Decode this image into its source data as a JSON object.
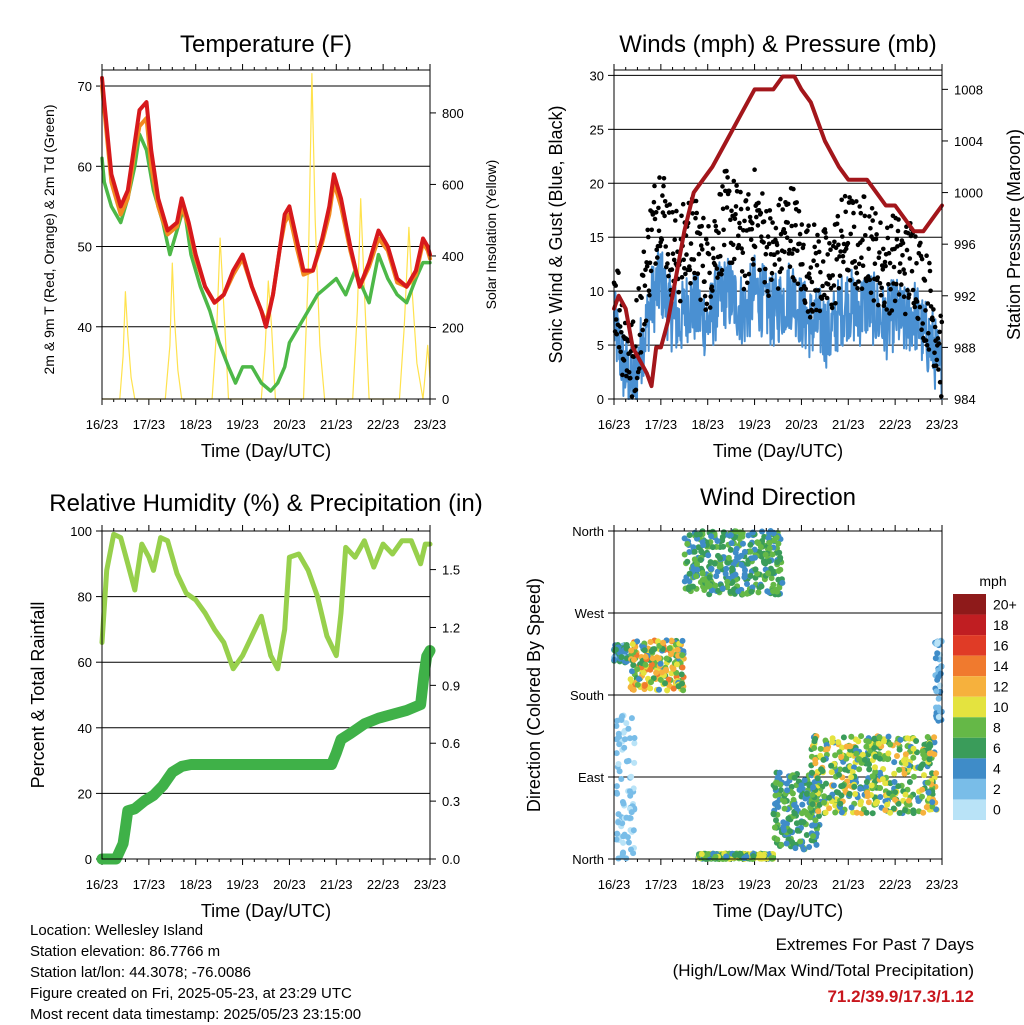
{
  "palette": {
    "t_red": "#d7191c",
    "t_orange": "#f28a20",
    "td_green": "#4db848",
    "solar_yellow": "#ffe24d",
    "wind_blue": "#4a90d2",
    "gust_black": "#000000",
    "pressure_maroon": "#a3161b",
    "rh_green": "#97d04c",
    "precip_green": "#3fb148",
    "extreme_red": "#c8161d"
  },
  "chart_data": [
    {
      "type": "line",
      "title": "Temperature (F)",
      "xlabel": "Time (Day/UTC)",
      "ylabel_left": "2m & 9m T (Red, Orange) & 2m Td (Green)",
      "ylabel_right": "Solar Insolation (Yellow)",
      "x_ticks": [
        "16/23",
        "17/23",
        "18/23",
        "19/23",
        "20/23",
        "21/23",
        "22/23",
        "23/23"
      ],
      "xlim": [
        0,
        7
      ],
      "y_ticks_left": [
        40,
        50,
        60,
        70
      ],
      "ylim_left": [
        31,
        72
      ],
      "y_ticks_right": [
        0,
        200,
        400,
        600,
        800
      ],
      "ylim_right": [
        0,
        920
      ],
      "grid_y": [
        40,
        50,
        60,
        70
      ],
      "series": [
        {
          "axis": "left",
          "x": [
            0,
            0.05,
            0.2,
            0.4,
            0.55,
            0.7,
            0.8,
            0.95,
            1.05,
            1.2,
            1.4,
            1.6,
            1.7,
            1.85,
            2,
            2.2,
            2.4,
            2.6,
            2.8,
            3,
            3.2,
            3.4,
            3.5,
            3.65,
            3.8,
            3.9,
            4,
            4.15,
            4.3,
            4.5,
            4.7,
            4.85,
            4.95,
            5.1,
            5.3,
            5.5,
            5.7,
            5.9,
            6.1,
            6.3,
            6.5,
            6.7,
            6.85,
            6.95,
            7
          ],
          "y": [
            71,
            68,
            59,
            55,
            57,
            63,
            67,
            68,
            62,
            56,
            52,
            53,
            56,
            53,
            49,
            45,
            43,
            44,
            47,
            49,
            45,
            42,
            40,
            44,
            50,
            54,
            55,
            51,
            47,
            47,
            51,
            55,
            59,
            56,
            50,
            45,
            48,
            52,
            50,
            46,
            45,
            47,
            51,
            50,
            49
          ]
        },
        {
          "axis": "left",
          "x": [
            0,
            0.05,
            0.2,
            0.4,
            0.55,
            0.7,
            0.8,
            0.95,
            1.05,
            1.2,
            1.4,
            1.6,
            1.7,
            1.85,
            2,
            2.2,
            2.4,
            2.6,
            2.8,
            3,
            3.2,
            3.4,
            3.5,
            3.65,
            3.8,
            3.9,
            4,
            4.15,
            4.3,
            4.5,
            4.7,
            4.85,
            4.95,
            5.1,
            5.3,
            5.5,
            5.7,
            5.9,
            6.1,
            6.3,
            6.5,
            6.7,
            6.85,
            6.95,
            7
          ],
          "y": [
            70,
            67,
            58,
            54,
            56,
            62,
            65,
            66,
            60,
            55,
            51.5,
            52.5,
            55,
            52.5,
            48.5,
            45,
            43,
            44,
            46.5,
            48.5,
            45,
            42,
            40.5,
            44,
            50,
            53,
            54,
            50,
            46.5,
            47,
            50.5,
            54,
            58,
            55,
            49.5,
            45,
            47.5,
            51,
            49.5,
            45.5,
            45,
            46.5,
            50.5,
            49.5,
            48.5
          ]
        },
        {
          "axis": "left",
          "x": [
            0,
            0.05,
            0.2,
            0.4,
            0.55,
            0.7,
            0.8,
            0.95,
            1.1,
            1.3,
            1.45,
            1.6,
            1.75,
            1.9,
            2.1,
            2.3,
            2.5,
            2.7,
            2.85,
            3,
            3.2,
            3.4,
            3.6,
            3.75,
            3.9,
            4,
            4.2,
            4.4,
            4.6,
            4.8,
            5,
            5.2,
            5.4,
            5.55,
            5.7,
            5.9,
            6.1,
            6.3,
            6.5,
            6.7,
            6.85,
            7
          ],
          "y": [
            61,
            58,
            55,
            53,
            56,
            60,
            64,
            62,
            57,
            53,
            49,
            52,
            55,
            49,
            45,
            42,
            38,
            35,
            33,
            35,
            35,
            33,
            32,
            33,
            35,
            38,
            40,
            42,
            44,
            45,
            46,
            44,
            47,
            45,
            43,
            49,
            46,
            44,
            43,
            46,
            48,
            48
          ]
        },
        {
          "axis": "right",
          "x": [
            0,
            0.38,
            0.45,
            0.5,
            0.55,
            0.62,
            0.7,
            1.35,
            1.45,
            1.5,
            1.55,
            1.62,
            1.7,
            2.35,
            2.45,
            2.52,
            2.6,
            2.7,
            3.4,
            3.48,
            3.55,
            3.62,
            3.7,
            4.3,
            4.4,
            4.48,
            4.55,
            4.65,
            4.75,
            5.35,
            5.45,
            5.52,
            5.6,
            5.7,
            6.35,
            6.45,
            6.55,
            6.62,
            6.72,
            6.85,
            6.95,
            7
          ],
          "y": [
            0,
            0,
            120,
            300,
            180,
            60,
            0,
            0,
            150,
            380,
            220,
            80,
            0,
            0,
            200,
            450,
            260,
            0,
            0,
            140,
            330,
            200,
            0,
            0,
            350,
            910,
            500,
            150,
            0,
            0,
            250,
            560,
            300,
            0,
            0,
            200,
            480,
            300,
            100,
            0,
            150,
            60
          ]
        }
      ]
    },
    {
      "type": "line",
      "title": "Winds (mph) & Pressure (mb)",
      "xlabel": "Time (Day/UTC)",
      "ylabel_left": "Sonic Wind & Gust (Blue, Black)",
      "ylabel_right": "Station Pressure (Maroon)",
      "x_ticks": [
        "16/23",
        "17/23",
        "18/23",
        "19/23",
        "20/23",
        "21/23",
        "22/23",
        "23/23"
      ],
      "xlim": [
        0,
        7
      ],
      "y_ticks_left": [
        0,
        5,
        10,
        15,
        20,
        25,
        30
      ],
      "ylim_left": [
        0,
        30.5
      ],
      "y_ticks_right": [
        984,
        988,
        992,
        996,
        1000,
        1004,
        1008
      ],
      "ylim_right": [
        984,
        1009.5
      ],
      "grid_y": [
        5,
        10,
        15,
        20,
        25,
        30
      ],
      "series": [
        {
          "axis": "left",
          "x": [
            0,
            0.2,
            0.4,
            0.6,
            0.8,
            1,
            1.2,
            1.4,
            1.6,
            1.8,
            2,
            2.2,
            2.4,
            2.6,
            2.8,
            3,
            3.2,
            3.4,
            3.6,
            3.8,
            4,
            4.2,
            4.4,
            4.6,
            4.8,
            5,
            5.2,
            5.4,
            5.6,
            5.8,
            6,
            6.2,
            6.4,
            6.6,
            6.8,
            7
          ],
          "y": [
            7,
            3,
            1,
            5,
            9,
            11,
            8,
            7,
            9,
            8,
            7,
            9,
            10,
            9,
            8,
            10,
            9,
            8,
            9,
            10,
            8,
            7,
            7,
            6,
            8,
            9,
            8,
            9,
            8,
            7,
            8,
            7,
            8,
            6,
            5,
            2
          ]
        },
        {
          "axis": "left",
          "x": [
            0,
            0.2,
            0.4,
            0.6,
            0.8,
            1,
            1.2,
            1.4,
            1.6,
            1.8,
            2,
            2.2,
            2.4,
            2.6,
            2.8,
            3,
            3.2,
            3.4,
            3.6,
            3.8,
            4,
            4.2,
            4.4,
            4.6,
            4.8,
            5,
            5.2,
            5.4,
            5.6,
            5.8,
            6,
            6.2,
            6.4,
            6.6,
            6.8,
            7
          ],
          "y": [
            11,
            6,
            3,
            9,
            15,
            19,
            14,
            13,
            15,
            14,
            12,
            15,
            17,
            16,
            14,
            17,
            15,
            13,
            15,
            16,
            13,
            12,
            12,
            11,
            14,
            15,
            14,
            15,
            13,
            12,
            13,
            12,
            13,
            10,
            8,
            4
          ]
        },
        {
          "axis": "right",
          "x": [
            0,
            0.1,
            0.25,
            0.4,
            0.55,
            0.7,
            0.8,
            0.9,
            1,
            1.15,
            1.3,
            1.5,
            1.7,
            1.9,
            2.1,
            2.4,
            2.7,
            3,
            3.2,
            3.4,
            3.6,
            3.75,
            3.85,
            4,
            4.2,
            4.5,
            4.8,
            5,
            5.2,
            5.4,
            5.6,
            5.8,
            6,
            6.2,
            6.4,
            6.6,
            6.8,
            7
          ],
          "y": [
            991,
            992,
            991,
            988,
            987,
            986,
            985,
            988,
            988,
            990,
            993,
            997,
            1000,
            1001,
            1002,
            1004,
            1006,
            1008,
            1008,
            1008,
            1009,
            1009,
            1009,
            1008,
            1007,
            1004,
            1002,
            1001,
            1001,
            1001,
            1000,
            999,
            999,
            998,
            997,
            997,
            998,
            999
          ]
        }
      ]
    },
    {
      "type": "line",
      "title": "Relative Humidity (%) & Precipitation (in)",
      "xlabel": "Time (Day/UTC)",
      "ylabel_left": "Percent & Total Rainfall",
      "x_ticks": [
        "16/23",
        "17/23",
        "18/23",
        "19/23",
        "20/23",
        "21/23",
        "22/23",
        "23/23"
      ],
      "xlim": [
        0,
        7
      ],
      "y_ticks_left": [
        0,
        20,
        40,
        60,
        80,
        100
      ],
      "ylim_left": [
        0,
        100
      ],
      "y_ticks_right": [
        "0.0",
        "0.3",
        "0.6",
        "0.9",
        "1.2",
        "1.5"
      ],
      "ylim_right": [
        0,
        1.7
      ],
      "grid_y": [
        20,
        40,
        60,
        80,
        100
      ],
      "series": [
        {
          "axis": "left",
          "x": [
            0,
            0.1,
            0.25,
            0.4,
            0.55,
            0.7,
            0.85,
            1,
            1.1,
            1.25,
            1.4,
            1.6,
            1.8,
            2,
            2.2,
            2.4,
            2.6,
            2.8,
            3,
            3.2,
            3.4,
            3.6,
            3.75,
            3.9,
            4,
            4.2,
            4.4,
            4.6,
            4.8,
            5,
            5.1,
            5.2,
            5.4,
            5.6,
            5.8,
            6,
            6.2,
            6.4,
            6.6,
            6.8,
            6.9,
            7
          ],
          "y": [
            66,
            88,
            99,
            98,
            90,
            82,
            96,
            92,
            88,
            98,
            97,
            87,
            81,
            79,
            75,
            70,
            66,
            58,
            62,
            68,
            74,
            62,
            58,
            70,
            92,
            93,
            88,
            80,
            68,
            62,
            75,
            95,
            92,
            97,
            89,
            96,
            93,
            97,
            97,
            90,
            96,
            96
          ]
        },
        {
          "axis": "right",
          "x": [
            0,
            0.3,
            0.45,
            0.5,
            0.55,
            0.7,
            0.9,
            1.1,
            1.3,
            1.5,
            1.7,
            1.9,
            2.5,
            3,
            3.5,
            4,
            4.5,
            4.9,
            5,
            5.1,
            5.3,
            5.6,
            5.9,
            6.2,
            6.5,
            6.8,
            6.87,
            6.93,
            7
          ],
          "y": [
            0,
            0,
            0.08,
            0.16,
            0.25,
            0.26,
            0.3,
            0.33,
            0.38,
            0.45,
            0.48,
            0.49,
            0.49,
            0.49,
            0.49,
            0.49,
            0.49,
            0.49,
            0.55,
            0.62,
            0.65,
            0.7,
            0.73,
            0.75,
            0.77,
            0.8,
            0.95,
            1.05,
            1.08
          ]
        }
      ]
    },
    {
      "type": "scatter",
      "title": "Wind Direction",
      "xlabel": "Time (Day/UTC)",
      "ylabel": "Direction (Colored By Speed)",
      "x_ticks": [
        "16/23",
        "17/23",
        "18/23",
        "19/23",
        "20/23",
        "21/23",
        "22/23",
        "23/23"
      ],
      "xlim": [
        0,
        7
      ],
      "y_ticks": [
        "North",
        "East",
        "South",
        "West",
        "North"
      ],
      "y_tick_values": [
        0,
        90,
        180,
        270,
        360
      ],
      "ylim": [
        0,
        360
      ],
      "grid_y": [
        90,
        180,
        270
      ],
      "colorbar_title": "mph",
      "colorbar_labels": [
        "0",
        "2",
        "4",
        "6",
        "8",
        "10",
        "12",
        "14",
        "16",
        "18",
        "20+"
      ],
      "colorbar_colors": [
        "#b9e3f7",
        "#79bde8",
        "#3f8cc8",
        "#3a9c5a",
        "#65b847",
        "#e4e33f",
        "#f6b13d",
        "#f07a2e",
        "#e03b26",
        "#c01e22",
        "#8e1a1a"
      ],
      "clusters": [
        {
          "x": [
            0,
            0.3
          ],
          "dir": [
            215,
            235
          ],
          "speed": [
            2,
            7
          ]
        },
        {
          "x": [
            0.05,
            0.45
          ],
          "dir": [
            0,
            160
          ],
          "speed": [
            0,
            3
          ]
        },
        {
          "x": [
            0.35,
            1.5
          ],
          "dir": [
            185,
            240
          ],
          "speed": [
            4,
            15
          ]
        },
        {
          "x": [
            1.5,
            3.6
          ],
          "dir": [
            290,
            360
          ],
          "speed": [
            3,
            9
          ]
        },
        {
          "x": [
            1.8,
            3.4
          ],
          "dir": [
            0,
            6
          ],
          "speed": [
            4,
            11
          ]
        },
        {
          "x": [
            3.4,
            4.4
          ],
          "dir": [
            10,
            95
          ],
          "speed": [
            3,
            9
          ]
        },
        {
          "x": [
            4.2,
            6.9
          ],
          "dir": [
            50,
            135
          ],
          "speed": [
            4,
            12
          ]
        },
        {
          "x": [
            6.85,
            7
          ],
          "dir": [
            150,
            240
          ],
          "speed": [
            0,
            5
          ]
        }
      ]
    }
  ],
  "station": {
    "location": "Location: Wellesley Island",
    "elevation": "Station elevation: 86.7766 m",
    "latlon": "Station lat/lon: 44.3078; -76.0086",
    "created": "Figure created on Fri, 2025-05-23, at 23:29 UTC",
    "latest": "Most recent data timestamp: 2025/05/23 23:15:00"
  },
  "extremes": {
    "line1": "Extremes For Past 7 Days",
    "line2": "(High/Low/Max Wind/Total Precipitation)",
    "values": "71.2/39.9/17.3/1.12"
  }
}
